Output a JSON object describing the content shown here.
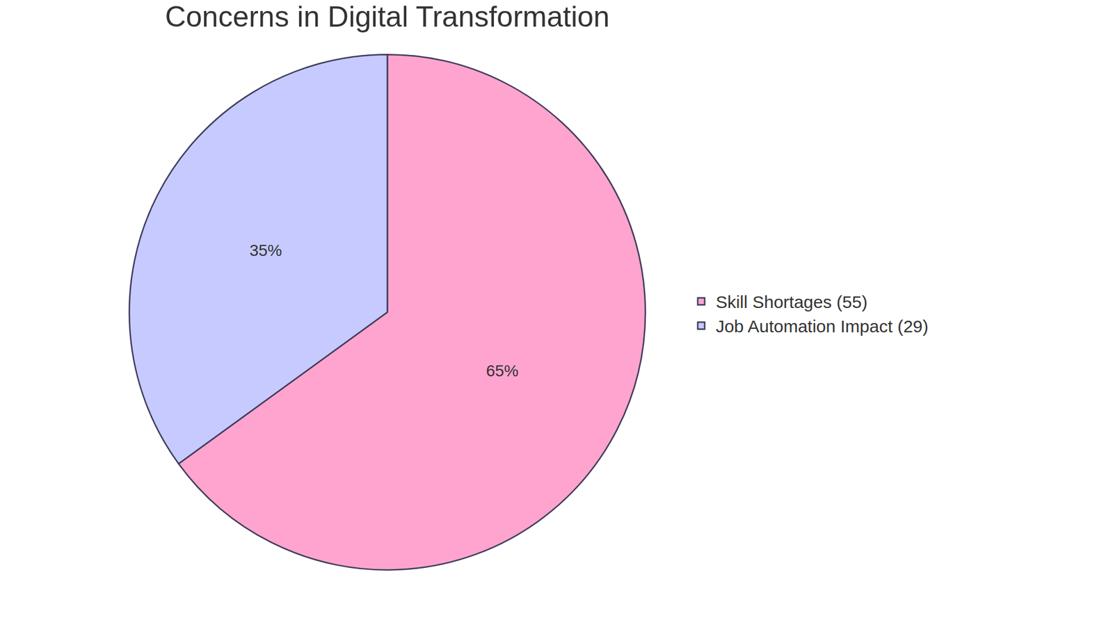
{
  "chart_data": {
    "type": "pie",
    "title": "Concerns in Digital Transformation",
    "categories": [
      "Skill Shortages (55)",
      "Job Automation Impact (29)"
    ],
    "values": [
      65,
      35
    ],
    "value_labels": [
      "65%",
      "35%"
    ],
    "colors": [
      "#ffa4ce",
      "#c7caff"
    ],
    "data_labels": true,
    "legend": "right"
  }
}
